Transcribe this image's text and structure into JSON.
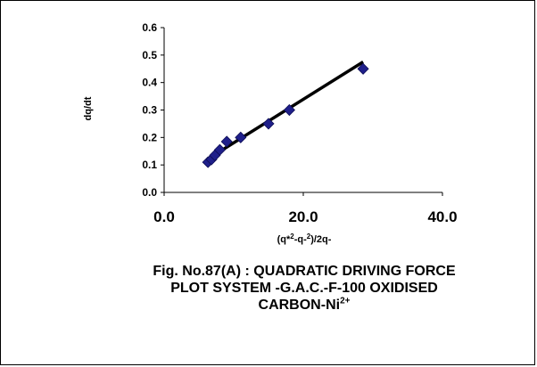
{
  "chart_data": {
    "type": "scatter",
    "xlabel": "(q*2-q-2)/2q-",
    "ylabel": "dq/dt",
    "xlim": [
      0,
      40
    ],
    "ylim": [
      0,
      0.6
    ],
    "x_ticks": [
      "0.0",
      "20.0",
      "40.0"
    ],
    "y_ticks": [
      "0.0",
      "0.1",
      "0.2",
      "0.3",
      "0.4",
      "0.5",
      "0.6"
    ],
    "grid": false,
    "legend": "none",
    "series": [
      {
        "marker": "diamond",
        "color": "#1f1f8a",
        "points": [
          {
            "x": 6.3,
            "y": 0.11
          },
          {
            "x": 6.8,
            "y": 0.12
          },
          {
            "x": 7.3,
            "y": 0.135
          },
          {
            "x": 8.0,
            "y": 0.155
          },
          {
            "x": 9.0,
            "y": 0.185
          },
          {
            "x": 11.0,
            "y": 0.2
          },
          {
            "x": 15.0,
            "y": 0.25
          },
          {
            "x": 18.0,
            "y": 0.3
          },
          {
            "x": 28.6,
            "y": 0.45
          }
        ]
      }
    ],
    "trendline": {
      "x": [
        6.3,
        28.6
      ],
      "y": [
        0.122,
        0.475
      ],
      "color": "#000000"
    }
  },
  "caption": {
    "line1": "Fig. No.87(A) : QUADRATIC DRIVING FORCE",
    "line2": "PLOT SYSTEM -G.A.C.-F-100 OXIDISED",
    "line3_text": "CARBON-Ni",
    "line3_sup": "2+"
  },
  "axis_label_parts": {
    "x_a": "(q*",
    "x_b": "2",
    "x_c": "-q-",
    "x_d": "2",
    "x_e": ")/2q-",
    "y": "dq/dt"
  }
}
